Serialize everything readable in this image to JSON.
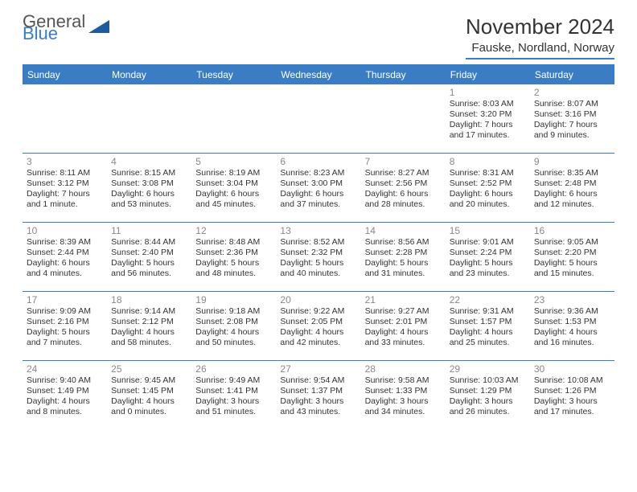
{
  "logo": {
    "text_general": "General",
    "text_blue": "Blue",
    "shape_color": "#1f5a9e"
  },
  "header": {
    "month_title": "November 2024",
    "location": "Fauske, Nordland, Norway"
  },
  "colors": {
    "accent": "#3b7dc4",
    "text": "#333333",
    "daynum": "#888888",
    "bg": "#ffffff"
  },
  "typography": {
    "title_fontsize_pt": 20,
    "location_fontsize_pt": 11,
    "header_fontsize_pt": 9,
    "cell_fontsize_pt": 8,
    "font_family": "Arial"
  },
  "calendar": {
    "type": "table",
    "columns": [
      "Sunday",
      "Monday",
      "Tuesday",
      "Wednesday",
      "Thursday",
      "Friday",
      "Saturday"
    ],
    "rows": [
      [
        null,
        null,
        null,
        null,
        null,
        {
          "day": "1",
          "sunrise": "Sunrise: 8:03 AM",
          "sunset": "Sunset: 3:20 PM",
          "daylight1": "Daylight: 7 hours",
          "daylight2": "and 17 minutes."
        },
        {
          "day": "2",
          "sunrise": "Sunrise: 8:07 AM",
          "sunset": "Sunset: 3:16 PM",
          "daylight1": "Daylight: 7 hours",
          "daylight2": "and 9 minutes."
        }
      ],
      [
        {
          "day": "3",
          "sunrise": "Sunrise: 8:11 AM",
          "sunset": "Sunset: 3:12 PM",
          "daylight1": "Daylight: 7 hours",
          "daylight2": "and 1 minute."
        },
        {
          "day": "4",
          "sunrise": "Sunrise: 8:15 AM",
          "sunset": "Sunset: 3:08 PM",
          "daylight1": "Daylight: 6 hours",
          "daylight2": "and 53 minutes."
        },
        {
          "day": "5",
          "sunrise": "Sunrise: 8:19 AM",
          "sunset": "Sunset: 3:04 PM",
          "daylight1": "Daylight: 6 hours",
          "daylight2": "and 45 minutes."
        },
        {
          "day": "6",
          "sunrise": "Sunrise: 8:23 AM",
          "sunset": "Sunset: 3:00 PM",
          "daylight1": "Daylight: 6 hours",
          "daylight2": "and 37 minutes."
        },
        {
          "day": "7",
          "sunrise": "Sunrise: 8:27 AM",
          "sunset": "Sunset: 2:56 PM",
          "daylight1": "Daylight: 6 hours",
          "daylight2": "and 28 minutes."
        },
        {
          "day": "8",
          "sunrise": "Sunrise: 8:31 AM",
          "sunset": "Sunset: 2:52 PM",
          "daylight1": "Daylight: 6 hours",
          "daylight2": "and 20 minutes."
        },
        {
          "day": "9",
          "sunrise": "Sunrise: 8:35 AM",
          "sunset": "Sunset: 2:48 PM",
          "daylight1": "Daylight: 6 hours",
          "daylight2": "and 12 minutes."
        }
      ],
      [
        {
          "day": "10",
          "sunrise": "Sunrise: 8:39 AM",
          "sunset": "Sunset: 2:44 PM",
          "daylight1": "Daylight: 6 hours",
          "daylight2": "and 4 minutes."
        },
        {
          "day": "11",
          "sunrise": "Sunrise: 8:44 AM",
          "sunset": "Sunset: 2:40 PM",
          "daylight1": "Daylight: 5 hours",
          "daylight2": "and 56 minutes."
        },
        {
          "day": "12",
          "sunrise": "Sunrise: 8:48 AM",
          "sunset": "Sunset: 2:36 PM",
          "daylight1": "Daylight: 5 hours",
          "daylight2": "and 48 minutes."
        },
        {
          "day": "13",
          "sunrise": "Sunrise: 8:52 AM",
          "sunset": "Sunset: 2:32 PM",
          "daylight1": "Daylight: 5 hours",
          "daylight2": "and 40 minutes."
        },
        {
          "day": "14",
          "sunrise": "Sunrise: 8:56 AM",
          "sunset": "Sunset: 2:28 PM",
          "daylight1": "Daylight: 5 hours",
          "daylight2": "and 31 minutes."
        },
        {
          "day": "15",
          "sunrise": "Sunrise: 9:01 AM",
          "sunset": "Sunset: 2:24 PM",
          "daylight1": "Daylight: 5 hours",
          "daylight2": "and 23 minutes."
        },
        {
          "day": "16",
          "sunrise": "Sunrise: 9:05 AM",
          "sunset": "Sunset: 2:20 PM",
          "daylight1": "Daylight: 5 hours",
          "daylight2": "and 15 minutes."
        }
      ],
      [
        {
          "day": "17",
          "sunrise": "Sunrise: 9:09 AM",
          "sunset": "Sunset: 2:16 PM",
          "daylight1": "Daylight: 5 hours",
          "daylight2": "and 7 minutes."
        },
        {
          "day": "18",
          "sunrise": "Sunrise: 9:14 AM",
          "sunset": "Sunset: 2:12 PM",
          "daylight1": "Daylight: 4 hours",
          "daylight2": "and 58 minutes."
        },
        {
          "day": "19",
          "sunrise": "Sunrise: 9:18 AM",
          "sunset": "Sunset: 2:08 PM",
          "daylight1": "Daylight: 4 hours",
          "daylight2": "and 50 minutes."
        },
        {
          "day": "20",
          "sunrise": "Sunrise: 9:22 AM",
          "sunset": "Sunset: 2:05 PM",
          "daylight1": "Daylight: 4 hours",
          "daylight2": "and 42 minutes."
        },
        {
          "day": "21",
          "sunrise": "Sunrise: 9:27 AM",
          "sunset": "Sunset: 2:01 PM",
          "daylight1": "Daylight: 4 hours",
          "daylight2": "and 33 minutes."
        },
        {
          "day": "22",
          "sunrise": "Sunrise: 9:31 AM",
          "sunset": "Sunset: 1:57 PM",
          "daylight1": "Daylight: 4 hours",
          "daylight2": "and 25 minutes."
        },
        {
          "day": "23",
          "sunrise": "Sunrise: 9:36 AM",
          "sunset": "Sunset: 1:53 PM",
          "daylight1": "Daylight: 4 hours",
          "daylight2": "and 16 minutes."
        }
      ],
      [
        {
          "day": "24",
          "sunrise": "Sunrise: 9:40 AM",
          "sunset": "Sunset: 1:49 PM",
          "daylight1": "Daylight: 4 hours",
          "daylight2": "and 8 minutes."
        },
        {
          "day": "25",
          "sunrise": "Sunrise: 9:45 AM",
          "sunset": "Sunset: 1:45 PM",
          "daylight1": "Daylight: 4 hours",
          "daylight2": "and 0 minutes."
        },
        {
          "day": "26",
          "sunrise": "Sunrise: 9:49 AM",
          "sunset": "Sunset: 1:41 PM",
          "daylight1": "Daylight: 3 hours",
          "daylight2": "and 51 minutes."
        },
        {
          "day": "27",
          "sunrise": "Sunrise: 9:54 AM",
          "sunset": "Sunset: 1:37 PM",
          "daylight1": "Daylight: 3 hours",
          "daylight2": "and 43 minutes."
        },
        {
          "day": "28",
          "sunrise": "Sunrise: 9:58 AM",
          "sunset": "Sunset: 1:33 PM",
          "daylight1": "Daylight: 3 hours",
          "daylight2": "and 34 minutes."
        },
        {
          "day": "29",
          "sunrise": "Sunrise: 10:03 AM",
          "sunset": "Sunset: 1:29 PM",
          "daylight1": "Daylight: 3 hours",
          "daylight2": "and 26 minutes."
        },
        {
          "day": "30",
          "sunrise": "Sunrise: 10:08 AM",
          "sunset": "Sunset: 1:26 PM",
          "daylight1": "Daylight: 3 hours",
          "daylight2": "and 17 minutes."
        }
      ]
    ]
  }
}
